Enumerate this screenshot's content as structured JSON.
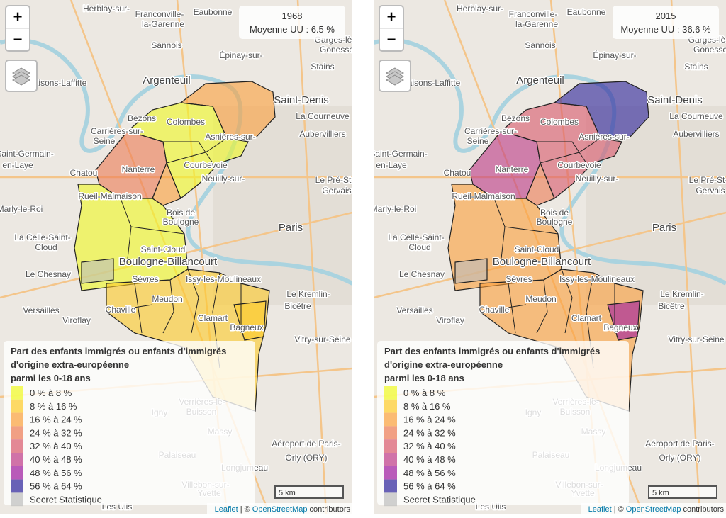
{
  "maps": [
    {
      "info": {
        "year": "1968",
        "mean": "Moyenne UU : 6.5 %"
      }
    },
    {
      "info": {
        "year": "2015",
        "mean": "Moyenne UU : 36.6 %"
      }
    }
  ],
  "zoom": {
    "in": "+",
    "out": "−"
  },
  "legend": {
    "title": [
      "Part des enfants immigrés ou enfants d'immigrés",
      "d'origine extra-européenne",
      "parmi les 0-18 ans"
    ],
    "classes": [
      "0 % à 8 %",
      "8 % à 16 %",
      "16 % à 24 %",
      "24 % à 32 %",
      "32 % à 40 %",
      "40 % à 48 %",
      "48 % à 56 %",
      "56 % à 64 %"
    ],
    "colors": [
      "#f0f921",
      "#fdca26",
      "#fb9f3a",
      "#ed7953",
      "#d8576b",
      "#bd3786",
      "#9c179e",
      "#2a1f9a"
    ],
    "secret": "Secret Statistique",
    "secret_color": "#bdbdbd"
  },
  "scale": "5 km",
  "attribution": {
    "leaflet": "Leaflet",
    "sep": "| ©",
    "osm": "OpenStreetMap",
    "rest": "contributors"
  },
  "places": [
    "Argenteuil",
    "Saint-Denis",
    "Colombes",
    "Nanterre",
    "Courbevoie",
    "Bezons",
    "Paris",
    "Boulogne-Billancourt",
    "Saint-Cloud",
    "Sèvres",
    "Meudon",
    "Clamart",
    "Bagneux",
    "Chaville",
    "Versailles",
    "Chatou",
    "Aubervilliers",
    "Stains",
    "Sannois",
    "Maisons-Laffitte",
    "Rueil-Malmaison",
    "Le Chesnay",
    "Massy",
    "Palaiseau",
    "Igny",
    "Le Kremlin-",
    "Bicêtre",
    "Vitry-sur-Seine",
    "Bois de",
    "Boulogne",
    "La Courneuve",
    "Marly-le-Roi",
    "Carrières-sur-",
    "Seine",
    "Eaubonne",
    "Herblay-sur-",
    "Franconville-",
    "la-Garenne",
    "Épinay-sur-",
    "Asnières-sur-",
    "Neuilly-sur-",
    "Issy-les-Moulineaux",
    "Viroflay",
    "Verrières-le-",
    "Buisson",
    "Saint-Germain-",
    "en-Laye",
    "Le Pré-St-",
    "Gervais",
    "La Celle-Saint-",
    "Cloud",
    "Garges-lès-",
    "Gonesse",
    "Longjumeau",
    "Les Ulis",
    "Yvette",
    "Villebon-sur-",
    "Aéroport de Paris-",
    "Orly (ORY)"
  ]
}
